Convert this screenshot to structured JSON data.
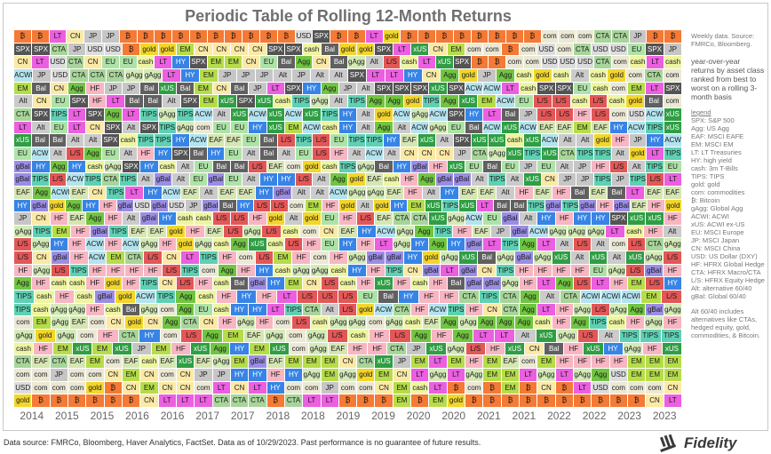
{
  "chart_data": {
    "type": "table",
    "title": "Periodic Table of Rolling 12-Month Returns",
    "x_labels": [
      "2014",
      "2015",
      "2015",
      "2016",
      "2016",
      "2017",
      "2017",
      "2018",
      "2018",
      "2019",
      "2019",
      "2020",
      "2020",
      "2021",
      "2021",
      "2022",
      "2022",
      "2023",
      "2023"
    ],
    "grid": [
      [
        "₿",
        "₿",
        "LT",
        "CN",
        "JP",
        "JP",
        "₿",
        "₿",
        "₿",
        "₿",
        "₿",
        "₿",
        "₿",
        "₿",
        "₿",
        "₿",
        "USD",
        "SPX",
        "₿",
        "₿",
        "LT",
        "gold",
        "₿",
        "₿",
        "₿",
        "₿",
        "₿",
        "₿",
        "₿",
        "₿",
        "com",
        "com",
        "com",
        "CTA",
        "CTA",
        "JP",
        "₿",
        "₿"
      ],
      [
        "SPX",
        "SPX",
        "CTA",
        "JP",
        "USD",
        "USD",
        "₿",
        "gold",
        "gold",
        "EM",
        "CN",
        "CN",
        "CN",
        "CN",
        "SPX",
        "SPX",
        "cash",
        "Bal",
        "gold",
        "gold",
        "SPX",
        "LT",
        "xUS",
        "CN",
        "EM",
        "com",
        "com",
        "₿",
        "com",
        "USD",
        "com",
        "CTA",
        "USD",
        "USD",
        "EU",
        "SPX",
        "JP"
      ],
      [
        "CN",
        "LT",
        "USD",
        "CTA",
        "CN",
        "EU",
        "EU",
        "cash",
        "LT",
        "HY",
        "SPX",
        "EM",
        "EM",
        "CN",
        "EU",
        "Bal",
        "Agg",
        "CN",
        "Bal",
        "gAgg",
        "Alt",
        "L/S",
        "cash",
        "LT",
        "xUS",
        "SPX",
        "₿",
        "₿",
        "com",
        "com",
        "USD",
        "USD",
        "USD",
        "CTA",
        "com",
        "cash",
        "LT",
        "cash"
      ],
      [
        "ACWI",
        "JP",
        "USD",
        "CTA",
        "CTA",
        "CTA",
        "gAgg",
        "gAgg",
        "LT",
        "HY",
        "EM",
        "JP",
        "JP",
        "JP",
        "Alt",
        "JP",
        "Alt",
        "Alt",
        "SPX",
        "LT",
        "LT",
        "HY",
        "CN",
        "Agg",
        "gold",
        "JP",
        "Agg",
        "cash",
        "gold",
        "cash",
        "Alt",
        "cash",
        "gold",
        "com",
        "CTA",
        "com"
      ],
      [
        "EM",
        "Bal",
        "CN",
        "Agg",
        "HF",
        "JP",
        "JP",
        "Bal",
        "xUS",
        "Bal",
        "EM",
        "CN",
        "Bal",
        "JP",
        "LT",
        "SPX",
        "HY",
        "Agg",
        "JP",
        "Alt",
        "SPX",
        "SPX",
        "SPX",
        "xUS",
        "SPX",
        "ACWI",
        "ACWI",
        "LT",
        "cash",
        "SPX",
        "SPX",
        "EU",
        "cash",
        "com",
        "EM",
        "LT",
        "SPX"
      ],
      [
        "Alt",
        "CN",
        "EU",
        "SPX",
        "HF",
        "LT",
        "Bal",
        "Bal",
        "Alt",
        "SPX",
        "EM",
        "xUS",
        "SPX",
        "xUS",
        "cash",
        "TIPS",
        "gAgg",
        "Alt",
        "TIPS",
        "Agg",
        "Agg",
        "gold",
        "TIPS",
        "Agg",
        "xUS",
        "EM",
        "ACWI",
        "EU",
        "L/S",
        "L/S",
        "cash",
        "L/S",
        "cash",
        "gold",
        "Bal",
        "com"
      ],
      [
        "CTA",
        "SPX",
        "TIPS",
        "LT",
        "SPX",
        "Agg",
        "LT",
        "TIPS",
        "gAgg",
        "TIPS",
        "ACWI",
        "Alt",
        "xUS",
        "ACWI",
        "xUS",
        "ACWI",
        "xUS",
        "TIPS",
        "HY",
        "Alt",
        "gold",
        "ACWI",
        "gAgg",
        "ACWI",
        "SPX",
        "HY",
        "LT",
        "Bal",
        "JP",
        "L/S",
        "L/S",
        "HF",
        "L/S",
        "com",
        "USD",
        "ACWI",
        "xUS"
      ],
      [
        "LT",
        "Alt",
        "EU",
        "LT",
        "CN",
        "SPX",
        "Alt",
        "SPX",
        "TIPS",
        "gAgg",
        "com",
        "EU",
        "EU",
        "HY",
        "xUS",
        "EM",
        "ACWI",
        "cash",
        "HY",
        "Alt",
        "Agg",
        "Alt",
        "ACWI",
        "gAgg",
        "EU",
        "Bal",
        "ACWI",
        "xUS",
        "ACWI",
        "EAF",
        "EAF",
        "EM",
        "EAF",
        "HY",
        "ACWI",
        "TIPS",
        "xUS"
      ],
      [
        "xUS",
        "Bal",
        "Bal",
        "Alt",
        "Alt",
        "SPX",
        "cash",
        "TIPS",
        "TIPS",
        "HY",
        "ACWI",
        "EAF",
        "EAF",
        "EU",
        "Bal",
        "L/S",
        "TIPS",
        "L/S",
        "EU",
        "TIPS",
        "TIPS",
        "HY",
        "EAF",
        "xUS",
        "Alt",
        "SPX",
        "xUS",
        "xUS",
        "cash",
        "xUS",
        "ACWI",
        "Alt",
        "Alt",
        "gold",
        "HF",
        "JP",
        "HY",
        "ACWI"
      ],
      [
        "EU",
        "ACWI",
        "Alt",
        "L/S",
        "Agg",
        "EU",
        "Alt",
        "HF",
        "HY",
        "SPX",
        "Bal",
        "HY",
        "EU",
        "Alt",
        "Bal",
        "Alt",
        "EU",
        "L/S",
        "HF",
        "Alt",
        "ACWI",
        "Alt",
        "CN",
        "CN",
        "CN",
        "JP",
        "CTA",
        "gAgg",
        "xUS",
        "TIPS",
        "xUS",
        "CTA",
        "TIPS",
        "TIPS",
        "Alt",
        "gold",
        "LT",
        "TIPS"
      ],
      [
        "gBal",
        "HY",
        "Agg",
        "HY",
        "cash",
        "gAgg",
        "SPX",
        "HY",
        "cash",
        "Alt",
        "EU",
        "Bal",
        "Bal",
        "L/S",
        "EAF",
        "com",
        "gold",
        "cash",
        "TIPS",
        "gAgg",
        "Bal",
        "HY",
        "gBal",
        "HF",
        "xUS",
        "EU",
        "Bal",
        "EU",
        "JP",
        "EU",
        "Alt",
        "JP",
        "HF",
        "L/S",
        "Alt",
        "TIPS",
        "EU"
      ],
      [
        "gBal",
        "TIPS",
        "L/S",
        "ACWI",
        "TIPS",
        "CTA",
        "TIPS",
        "Alt",
        "gBal",
        "Alt",
        "EU",
        "gBal",
        "EU",
        "Alt",
        "HY",
        "HY",
        "L/S",
        "Alt",
        "Agg",
        "gold",
        "EAF",
        "cash",
        "HF",
        "Agg",
        "gBal",
        "gBal",
        "Alt",
        "TIPS",
        "Alt",
        "xUS",
        "CN",
        "JP",
        "JP",
        "TIPS",
        "JP",
        "TIPS",
        "L/S",
        "LT"
      ],
      [
        "EAF",
        "Agg",
        "ACWI",
        "EAF",
        "CN",
        "TIPS",
        "LT",
        "HY",
        "ACWI",
        "EAF",
        "Alt",
        "EAF",
        "EAF",
        "HY",
        "gBal",
        "Alt",
        "Alt",
        "ACWI",
        "gAgg",
        "gAgg",
        "EAF",
        "HF",
        "Alt",
        "HY",
        "EAF",
        "EAF",
        "Alt",
        "HF",
        "EAF",
        "HF",
        "Bal",
        "EAF",
        "Bal",
        "LT",
        "EAF",
        "EAF"
      ],
      [
        "HY",
        "gBal",
        "gold",
        "Agg",
        "HY",
        "HF",
        "gBal",
        "USD",
        "gBal",
        "USD",
        "JP",
        "gBal",
        "Bal",
        "HY",
        "L/S",
        "L/S",
        "com",
        "EM",
        "HF",
        "gold",
        "Alt",
        "gold",
        "HY",
        "EM",
        "xUS",
        "TIPS",
        "xUS",
        "LT",
        "Bal",
        "Bal",
        "TIPS",
        "gBal",
        "TIPS",
        "gBal",
        "HF",
        "gBal",
        "EAF",
        "HF",
        "gold"
      ],
      [
        "JP",
        "CN",
        "HF",
        "EAF",
        "Agg",
        "HF",
        "Alt",
        "gBal",
        "HY",
        "cash",
        "cash",
        "L/S",
        "L/S",
        "HF",
        "gold",
        "Alt",
        "gold",
        "EU",
        "HF",
        "L/S",
        "EAF",
        "CTA",
        "CTA",
        "xUS",
        "gAgg",
        "ACWI",
        "EU",
        "gBal",
        "Alt",
        "HY",
        "HF",
        "HY",
        "HY",
        "SPX",
        "xUS",
        "xUS",
        "HF"
      ],
      [
        "gAgg",
        "TIPS",
        "EM",
        "HF",
        "gBal",
        "TIPS",
        "EAF",
        "EAF",
        "gold",
        "HF",
        "EAF",
        "L/S",
        "gAgg",
        "L/S",
        "cash",
        "com",
        "CN",
        "EAF",
        "HY",
        "ACWI",
        "gAgg",
        "Agg",
        "TIPS",
        "HF",
        "EAF",
        "JP",
        "gBal",
        "ACWI",
        "gAgg",
        "gAgg",
        "gAgg",
        "LT",
        "cash",
        "HF",
        "Alt"
      ],
      [
        "L/S",
        "gAgg",
        "HY",
        "HF",
        "ACWI",
        "HF",
        "ACWI",
        "gAgg",
        "HF",
        "gold",
        "gAgg",
        "cash",
        "Agg",
        "xUS",
        "cash",
        "L/S",
        "HF",
        "EU",
        "HY",
        "HF",
        "LT",
        "gAgg",
        "HY",
        "Agg",
        "HY",
        "gBal",
        "LT",
        "TIPS",
        "Agg",
        "LT",
        "Alt",
        "L/S",
        "Alt",
        "com",
        "L/S",
        "CTA",
        "gAgg"
      ],
      [
        "L/S",
        "CN",
        "gBal",
        "HF",
        "ACWI",
        "EM",
        "CTA",
        "L/S",
        "CN",
        "LT",
        "TIPS",
        "HF",
        "com",
        "L/S",
        "EM",
        "HF",
        "com",
        "HF",
        "gAgg",
        "gBal",
        "gBal",
        "HY",
        "gold",
        "gAgg",
        "xUS",
        "Bal",
        "gAgg",
        "gBal",
        "gAgg",
        "xUS",
        "Alt",
        "xUS",
        "Alt",
        "xUS",
        "gAgg",
        "L/S"
      ],
      [
        "HF",
        "gAgg",
        "L/S",
        "TIPS",
        "HF",
        "HF",
        "HF",
        "HF",
        "L/S",
        "TIPS",
        "com",
        "Agg",
        "HF",
        "HY",
        "cash",
        "gAgg",
        "gAgg",
        "cash",
        "HY",
        "HF",
        "TIPS",
        "CN",
        "gBal",
        "LT",
        "gBal",
        "CN",
        "TIPS",
        "HF",
        "HF",
        "HF",
        "HF",
        "EU",
        "gAgg",
        "L/S",
        "gBal",
        "HF"
      ],
      [
        "Agg",
        "HF",
        "cash",
        "cash",
        "HF",
        "gold",
        "HF",
        "TIPS",
        "CN",
        "L/S",
        "HF",
        "cash",
        "Bal",
        "gBal",
        "HY",
        "EM",
        "CN",
        "L/S",
        "cash",
        "HF",
        "xUS",
        "HF",
        "cash",
        "HF",
        "Bal",
        "gBal",
        "gBal",
        "gAgg",
        "HF",
        "LT",
        "Agg",
        "L/S",
        "LT",
        "HF",
        "EM",
        "L/S",
        "HY"
      ],
      [
        "TIPS",
        "cash",
        "HF",
        "cash",
        "gBal",
        "gold",
        "ACWI",
        "TIPS",
        "Agg",
        "cash",
        "HF",
        "HY",
        "HF",
        "LT",
        "L/S",
        "L/S",
        "L/S",
        "EU",
        "Bal",
        "HY",
        "HF",
        "HF",
        "CTA",
        "TIPS",
        "CTA",
        "Agg",
        "Alt",
        "CTA",
        "ACWI",
        "ACWI",
        "ACWI",
        "EM",
        "L/S"
      ],
      [
        "TIPS",
        "cash",
        "gAgg",
        "gAgg",
        "HF",
        "cash",
        "Bal",
        "gAgg",
        "com",
        "Agg",
        "EU",
        "cash",
        "HY",
        "HY",
        "LT",
        "TIPS",
        "CTA",
        "Alt",
        "L/S",
        "gold",
        "ACWI",
        "CTA",
        "HF",
        "ACWI",
        "TIPS",
        "HF",
        "CN",
        "CTA",
        "Agg",
        "LT",
        "HF",
        "gAgg",
        "L/S",
        "gAgg",
        "Agg",
        "gBal",
        "gAgg"
      ],
      [
        "com",
        "EM",
        "gAgg",
        "EAF",
        "com",
        "CN",
        "gold",
        "CN",
        "Agg",
        "CTA",
        "CN",
        "HF",
        "gAgg",
        "HF",
        "com",
        "L/S",
        "cash",
        "gAgg",
        "gAgg",
        "com",
        "gAgg",
        "cash",
        "EAF",
        "Agg",
        "gAgg",
        "Agg",
        "Agg",
        "Agg",
        "cash",
        "HF",
        "Agg",
        "TIPS",
        "cash",
        "HF",
        "gAgg",
        "HF"
      ],
      [
        "gAgg",
        "gold",
        "gAgg",
        "com",
        "HF",
        "CTA",
        "HY",
        "com",
        "L/S",
        "Agg",
        "EM",
        "EAF",
        "gAgg",
        "com",
        "gAgg",
        "L/S",
        "cash",
        "HF",
        "L/S",
        "Agg",
        "HF",
        "Agg",
        "LT",
        "LT",
        "Alt",
        "xUS",
        "gAgg",
        "L/S",
        "Alt",
        "TIPS",
        "TIPS",
        "TIPS"
      ],
      [
        "cash",
        "HF",
        "EM",
        "xUS",
        "EM",
        "xUS",
        "JP",
        "EM",
        "HF",
        "xUS",
        "Agg",
        "HY",
        "EM",
        "xUS",
        "com",
        "gAgg",
        "EAF",
        "HF",
        "HF",
        "CTA",
        "JP",
        "xUS",
        "gAgg",
        "L/S",
        "HF",
        "xUS",
        "CN",
        "Bal",
        "HF",
        "xUS",
        "HY",
        "gAgg",
        "HF",
        "xUS"
      ],
      [
        "CTA",
        "EAF",
        "CTA",
        "EAF",
        "EM",
        "com",
        "EAF",
        "cash",
        "EAF",
        "xUS",
        "EAF",
        "gAgg",
        "EM",
        "gBal",
        "EAF",
        "EM",
        "EM",
        "EM",
        "CN",
        "CTA",
        "xUS",
        "JP",
        "EM",
        "LT",
        "EM",
        "HF",
        "EM",
        "EAF",
        "com",
        "EM",
        "HF",
        "HF",
        "HF",
        "HF",
        "EM",
        "EM",
        "EM"
      ],
      [
        "com",
        "com",
        "JP",
        "com",
        "com",
        "CN",
        "EM",
        "CN",
        "com",
        "CN",
        "JP",
        "JP",
        "HY",
        "HY",
        "HF",
        "HY",
        "gAgg",
        "EM",
        "gAgg",
        "gold",
        "EM",
        "CN",
        "LT",
        "gAgg",
        "LT",
        "gAgg",
        "EM",
        "EM",
        "LT",
        "gAgg",
        "LT",
        "gAgg",
        "Agg",
        "USD",
        "EM",
        "EM",
        "EM"
      ],
      [
        "USD",
        "com",
        "com",
        "com",
        "gold",
        "₿",
        "CN",
        "EM",
        "CN",
        "CN",
        "com",
        "LT",
        "CN",
        "LT",
        "HY",
        "com",
        "com",
        "JP",
        "com",
        "com",
        "CN",
        "EM",
        "cash",
        "LT",
        "₿",
        "com",
        "₿",
        "EM",
        "₿",
        "CN",
        "₿",
        "LT",
        "USD",
        "com",
        "com",
        "com",
        "CN"
      ],
      [
        "gold",
        "₿",
        "₿",
        "₿",
        "₿",
        "₿",
        "₿",
        "CN",
        "LT",
        "LT",
        "LT",
        "CTA",
        "CTA",
        "CTA",
        "₿",
        "CTA",
        "LT",
        "LT",
        "₿",
        "₿",
        "₿",
        "EM",
        "₿",
        "EM",
        "gold",
        "₿",
        "₿",
        "₿",
        "₿",
        "₿",
        "₿",
        "₿",
        "₿",
        "₿",
        "₿",
        "CN",
        "LT"
      ]
    ],
    "notes": {
      "data_note": "Weekly data. Source: FMRCo, Bloomberg.",
      "description": "year-over-year returns by asset class ranked from best to worst on a rolling 3-month basis",
      "legend_title": "legend",
      "legend": [
        "SPX: S&P 500",
        "Agg: US Agg",
        "EAF: MSCI EAFE",
        "EM: MSCI EM",
        "LT: LT Treasuries",
        "HY: high yield",
        "cash: 3m T-Bills",
        "TIPS: TIPS",
        "gold: gold",
        "com: commodities",
        "₿: Bitcoin",
        "gAgg: Global Agg",
        "ACWI: ACWI",
        "xUS: ACWI ex-US",
        "EU: MSCI Europe",
        "JP: MSCI Japan",
        "CN: MSCI China",
        "USD: US Dollar (DXY)",
        "HF: HFRX Global Hedge",
        "CTA: HFRX Macro/CTA",
        "L/S: HFRX Equity Hedge",
        "Alt: alternative 60/40",
        "gBal: Global 60/40"
      ],
      "footnote": "Alt 60/40 includes alternatives like CTAs, hedged equity, gold, commodities, & Bitcoin."
    },
    "colors": {
      "₿": "#f47a35",
      "SPX": "#545454",
      "JP": "#c6c6c6",
      "LT": "#eb5fe0",
      "CN": "#fbe9a6",
      "gold": "#f2d62c",
      "USD": "#dcdcdc",
      "EM": "#b6dd49",
      "cash": "#eef5a0",
      "com": "#ebe8d5",
      "CTA": "#a8d59a",
      "EU": "#aee3a7",
      "Bal": "#606060",
      "HY": "#3784e6",
      "Agg": "#71c541",
      "gAgg": "#d4ebb8",
      "Alt": "#cbcbcb",
      "ACWI": "#b3e3ee",
      "xUS": "#2f9e44",
      "L/S": "#e35757",
      "HF": "#f7b6c2",
      "TIPS": "#5fd0b3",
      "EAF": "#d6e6b3",
      "gBal": "#9b8de4"
    }
  },
  "source": "Data source: FMRCo, Bloomberg, Haver Analytics, FactSet. Data as of 10/29/2023. Past performance is no guarantee of future results.",
  "logo_text": "Fidelity"
}
